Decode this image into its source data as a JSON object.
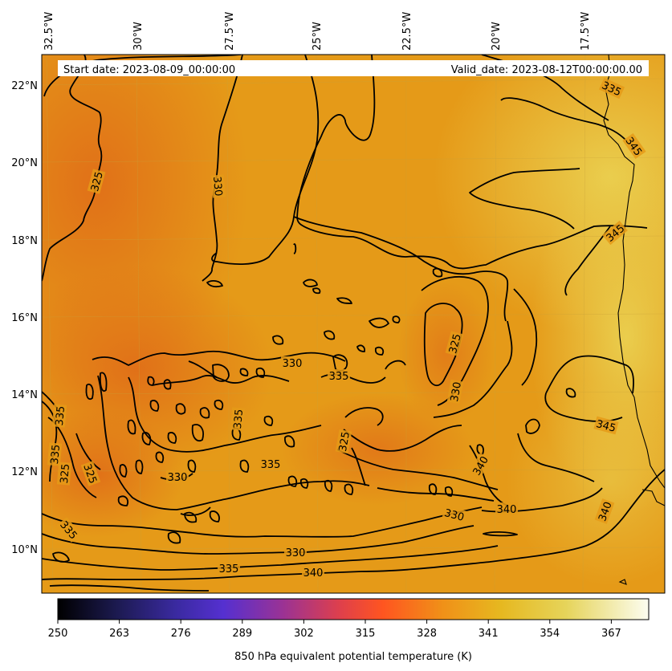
{
  "header": {
    "start_date": "Start date: 2023-08-09_00:00:00",
    "valid_date": "Valid_date: 2023-08-12T00:00:00.00"
  },
  "axes": {
    "longitude_labels": [
      "32.5°W",
      "30°W",
      "27.5°W",
      "25°W",
      "22.5°W",
      "20°W",
      "17.5°W"
    ],
    "latitude_labels": [
      "22°N",
      "20°N",
      "18°N",
      "16°N",
      "14°N",
      "12°N",
      "10°N"
    ]
  },
  "colorbar": {
    "label": "850 hPa equivalent potential temperature (K)",
    "ticks": [
      "250",
      "263",
      "276",
      "289",
      "302",
      "315",
      "328",
      "341",
      "354",
      "367"
    ],
    "colormap": "CMRmap",
    "colors": [
      "#000000",
      "#2a2370",
      "#4a2bc8",
      "#a03290",
      "#e04045",
      "#ff5820",
      "#f0961a",
      "#e6bb20",
      "#e8d350",
      "#fafbe8"
    ]
  },
  "contour_labels": [
    {
      "text": "335"
    },
    {
      "text": "345"
    },
    {
      "text": "325"
    },
    {
      "text": "330"
    },
    {
      "text": "345"
    },
    {
      "text": "325"
    },
    {
      "text": "330"
    },
    {
      "text": "335"
    },
    {
      "text": "330"
    },
    {
      "text": "345"
    },
    {
      "text": "335"
    },
    {
      "text": "325"
    },
    {
      "text": "340"
    },
    {
      "text": "335"
    },
    {
      "text": "325"
    },
    {
      "text": "335"
    },
    {
      "text": "325"
    },
    {
      "text": "335"
    },
    {
      "text": "330"
    },
    {
      "text": "330"
    },
    {
      "text": "340"
    },
    {
      "text": "340"
    },
    {
      "text": "335"
    },
    {
      "text": "330"
    },
    {
      "text": "335"
    },
    {
      "text": "340"
    }
  ],
  "field_colors": {
    "base": "#e59a18",
    "warm_low": "#e07a12",
    "cold": "#e0751a",
    "yellow": "#e9c94a"
  }
}
